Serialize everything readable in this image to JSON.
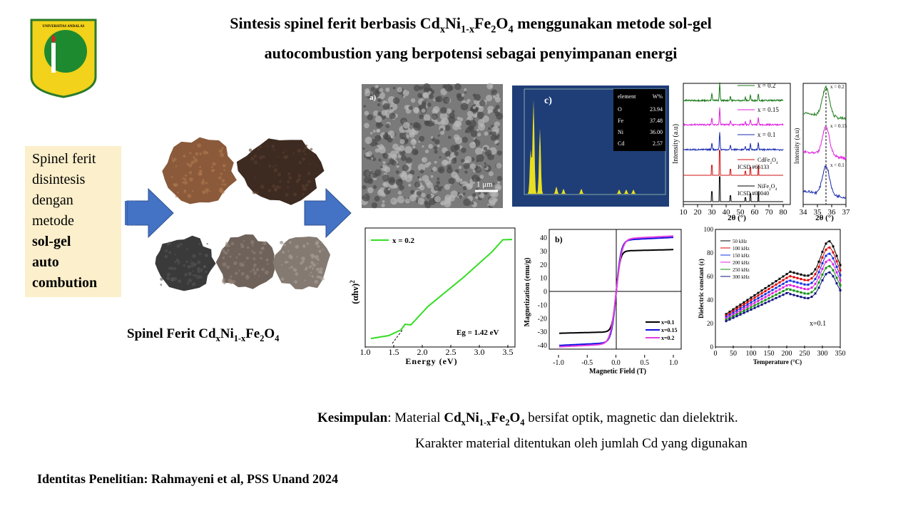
{
  "logo": {
    "text": "UNIVERSITAS ANDALAS"
  },
  "title": {
    "line1": [
      "Sintesis spinel ferit berbasis Cd",
      "x",
      "Ni",
      "1-x",
      "Fe",
      "2",
      "O",
      "4",
      " menggunakan metode sol-gel"
    ],
    "line2": "autocombustion yang berpotensi sebagai penyimpanan energi"
  },
  "method_box": {
    "lines": [
      "Spinel ferit",
      "disintesis",
      "dengan",
      "metode"
    ],
    "bold_lines": [
      "sol-gel",
      "auto",
      "combution"
    ]
  },
  "caption": [
    "Spinel Ferit Cd",
    "x",
    "Ni",
    "1-x",
    "Fe",
    "2",
    "O",
    "4"
  ],
  "sem": {
    "label": "a)",
    "scale": "1 μm"
  },
  "edx": {
    "label": "c)",
    "table": {
      "header": [
        "element",
        "W%"
      ],
      "rows": [
        [
          "O",
          "23.94"
        ],
        [
          "Fe",
          "37.48"
        ],
        [
          "Ni",
          "36.00"
        ],
        [
          "Cd",
          "2.57"
        ]
      ]
    }
  },
  "xrd": {
    "y_label": "Intensity (a.u)",
    "x_label": "2θ (°)",
    "xticks": [
      "10",
      "20",
      "30",
      "40",
      "50",
      "60",
      "70",
      "80"
    ],
    "series": [
      {
        "name": "x = 0.2",
        "color": "#1a7a1a"
      },
      {
        "name": "x = 0.15",
        "color": "#e020e0"
      },
      {
        "name": "x = 0.1",
        "color": "#1a2ab0"
      },
      {
        "name": [
          "CdFe",
          "2",
          "O",
          "4"
        ],
        "ref": "ICSD #66133",
        "color": "#d01010"
      },
      {
        "name": [
          "NiFe",
          "2",
          "O",
          "4"
        ],
        "ref": "ICSD #00040",
        "color": "#000000"
      }
    ]
  },
  "xrd_zoom": {
    "y_label": "Intensity (a.u)",
    "x_label": "2θ (°)",
    "xticks": [
      "34",
      "35",
      "36",
      "37"
    ],
    "series": [
      {
        "name": "x = 0.2",
        "color": "#1a7a1a"
      },
      {
        "name": "x = 0.15",
        "color": "#e020e0"
      },
      {
        "name": "x = 0.1",
        "color": "#1a2ab0"
      }
    ]
  },
  "tauc": {
    "legend": "x = 0.2",
    "color": "#33dd22",
    "y_label": "(αhν)",
    "y_label_sup": "2",
    "annotation": "Eg = 1.42 eV",
    "x_label": "Energy (eV)",
    "xticks": [
      "1.0",
      "1.5",
      "2.0",
      "2.5",
      "3.0",
      "3.5"
    ]
  },
  "magnetic": {
    "label": "b)",
    "y_label": "Magnetization (emu/g)",
    "x_label": "Magnetic Field (T)",
    "yticks": [
      "40",
      "30",
      "20",
      "10",
      "0",
      "-10",
      "-20",
      "-30",
      "-40"
    ],
    "xticks": [
      "-1.0",
      "-0.5",
      "0.0",
      "0.5",
      "1.0"
    ],
    "series": [
      {
        "name": "x=0.1",
        "color": "#000000"
      },
      {
        "name": "x=0.15",
        "color": "#1010e0"
      },
      {
        "name": "x=0.2",
        "color": "#e040e0"
      }
    ]
  },
  "dielectric": {
    "y_label": "Dielectric constant (ε)",
    "x_label": "Temperature (°C)",
    "annotation": "x=0.1",
    "yticks": [
      "0",
      "20",
      "40",
      "60",
      "80",
      "100"
    ],
    "xticks": [
      "0",
      "50",
      "100",
      "150",
      "200",
      "250",
      "300",
      "350"
    ],
    "series": [
      {
        "name": "50 kHz",
        "color": "#000000"
      },
      {
        "name": "100 kHz",
        "color": "#e00000"
      },
      {
        "name": "150 kHz",
        "color": "#1030e0"
      },
      {
        "name": "200 kHz",
        "color": "#e020e0"
      },
      {
        "name": "250 kHz",
        "color": "#109010"
      },
      {
        "name": "300 kHz",
        "color": "#101080"
      }
    ]
  },
  "conclusion": {
    "label": "Kesimpulan",
    "line1": [
      ": Material ",
      "Cd",
      "x",
      "Ni",
      "1-x",
      "Fe",
      "2",
      "O",
      "4",
      " bersifat optik, magnetic dan dielektrik."
    ],
    "line2": "Karakter material ditentukan oleh jumlah Cd yang digunakan"
  },
  "footer": "Identitas Penelitian: Rahmayeni et al, PSS Unand 2024"
}
